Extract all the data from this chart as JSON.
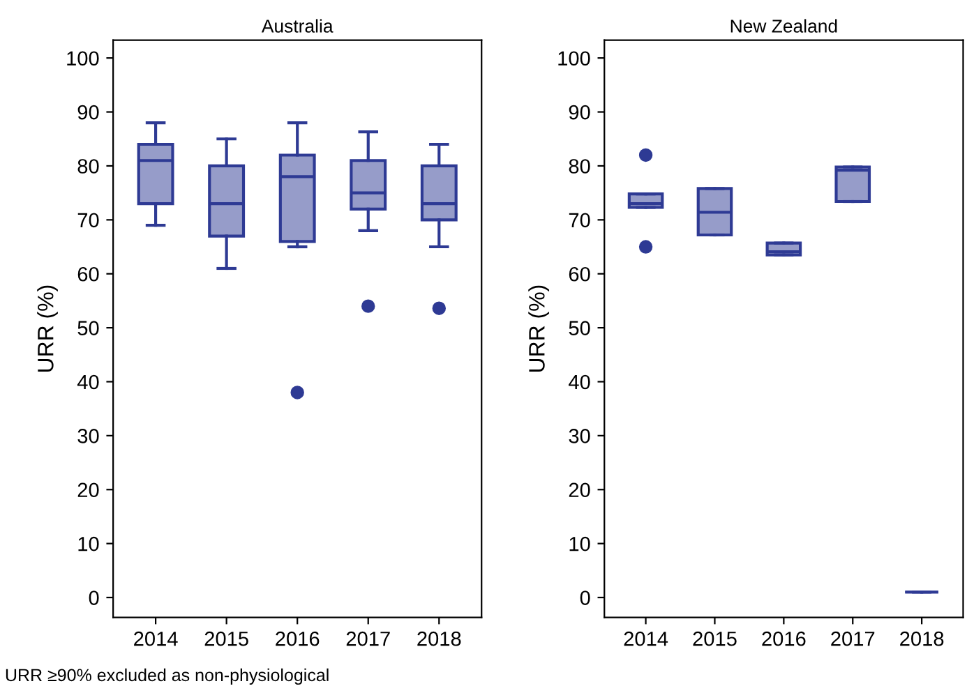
{
  "chart_data": [
    {
      "type": "box",
      "title": "Australia",
      "ylabel": "URR (%)",
      "categories": [
        "2014",
        "2015",
        "2016",
        "2017",
        "2018"
      ],
      "ylim": [
        -3.7,
        103.3
      ],
      "yticks": [
        0,
        10,
        20,
        30,
        40,
        50,
        60,
        70,
        80,
        90,
        100
      ],
      "grid": false,
      "annotations": [
        "URR ≥90% excluded as non-physiological"
      ],
      "series": [
        {
          "color": "#2e3a94",
          "boxes": [
            {
              "low": 69,
              "q1": 73,
              "median": 81,
              "q3": 84,
              "high": 88
            },
            {
              "low": 61,
              "q1": 67,
              "median": 73,
              "q3": 80,
              "high": 85
            },
            {
              "low": 65,
              "q1": 66,
              "median": 78,
              "q3": 82,
              "high": 88,
              "outliers": [
                38
              ]
            },
            {
              "low": 68,
              "q1": 72,
              "median": 75,
              "q3": 81,
              "high": 86.3,
              "outliers": [
                54
              ]
            },
            {
              "low": 65,
              "q1": 70,
              "median": 73,
              "q3": 80,
              "high": 84,
              "outliers": [
                53.6
              ]
            }
          ]
        }
      ]
    },
    {
      "type": "box",
      "title": "New Zealand",
      "ylabel": "URR (%)",
      "categories": [
        "2014",
        "2015",
        "2016",
        "2017",
        "2018"
      ],
      "ylim": [
        -3.7,
        103.3
      ],
      "yticks": [
        0,
        10,
        20,
        30,
        40,
        50,
        60,
        70,
        80,
        90,
        100
      ],
      "grid": false,
      "series": [
        {
          "color": "#2e3a94",
          "boxes": [
            {
              "low": 72.3,
              "q1": 72.3,
              "median": 73,
              "q3": 74.8,
              "high": 74.8,
              "outliers": [
                82,
                65
              ]
            },
            {
              "low": 67.2,
              "q1": 67.2,
              "median": 71.4,
              "q3": 75.8,
              "high": 75.8
            },
            {
              "low": 63.5,
              "q1": 63.5,
              "median": 64.1,
              "q3": 65.7,
              "high": 65.7
            },
            {
              "low": 73.4,
              "q1": 73.4,
              "median": 79.2,
              "q3": 79.8,
              "high": 79.8
            },
            {
              "low": 1,
              "q1": 1,
              "median": 1,
              "q3": 1,
              "high": 1
            }
          ]
        }
      ]
    }
  ]
}
